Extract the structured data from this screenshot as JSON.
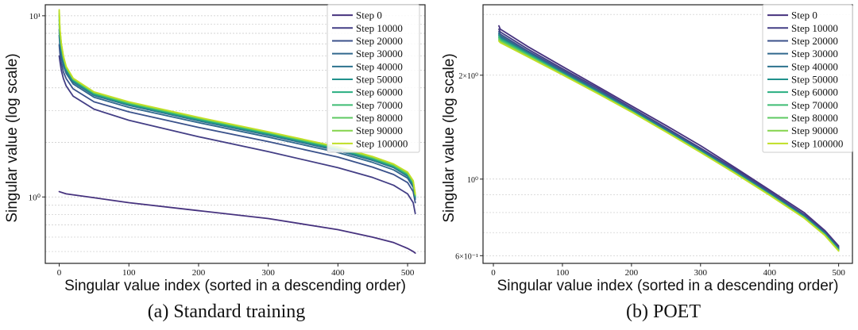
{
  "chart_data": [
    {
      "id": "a",
      "type": "line",
      "caption": "(a) Standard training",
      "xlabel": "Singular value index (sorted in a descending order)",
      "ylabel": "Singular value (log scale)",
      "yscale": "log",
      "xlim": [
        -20,
        525
      ],
      "ylim": [
        0.43,
        11.5
      ],
      "xticks": [
        0,
        100,
        200,
        300,
        400,
        500
      ],
      "xtick_labels": [
        "0",
        "100",
        "200",
        "300",
        "400",
        "500"
      ],
      "yticks": [
        1,
        10
      ],
      "ytick_labels": [
        "10⁰",
        "10¹"
      ],
      "grid": "horizontal minor",
      "legend_position": "top-right",
      "series": [
        {
          "name": "Step 0",
          "color": "#46327e",
          "x": [
            0,
            10,
            50,
            100,
            200,
            300,
            400,
            450,
            480,
            500,
            508,
            511
          ],
          "y": [
            1.07,
            1.04,
            0.99,
            0.93,
            0.84,
            0.76,
            0.66,
            0.6,
            0.56,
            0.52,
            0.5,
            0.49
          ]
        },
        {
          "name": "Step 10000",
          "color": "#433e85",
          "x": [
            0,
            1,
            3,
            6,
            10,
            20,
            50,
            100,
            200,
            300,
            400,
            450,
            480,
            500,
            508,
            511
          ],
          "y": [
            6.0,
            5.6,
            5.0,
            4.5,
            4.1,
            3.6,
            3.05,
            2.65,
            2.15,
            1.78,
            1.45,
            1.28,
            1.16,
            1.04,
            0.93,
            0.81
          ]
        },
        {
          "name": "Step 20000",
          "color": "#3b528b",
          "x": [
            0,
            1,
            3,
            6,
            10,
            20,
            50,
            100,
            200,
            300,
            400,
            450,
            480,
            500,
            508,
            511
          ],
          "y": [
            6.9,
            6.2,
            5.5,
            4.9,
            4.5,
            3.95,
            3.35,
            2.95,
            2.42,
            2.02,
            1.66,
            1.46,
            1.33,
            1.2,
            1.07,
            0.93
          ]
        },
        {
          "name": "Step 30000",
          "color": "#31688e",
          "x": [
            0,
            1,
            3,
            6,
            10,
            20,
            50,
            100,
            200,
            300,
            400,
            450,
            480,
            500,
            508,
            511
          ],
          "y": [
            7.8,
            6.8,
            6.0,
            5.3,
            4.8,
            4.2,
            3.55,
            3.12,
            2.57,
            2.14,
            1.76,
            1.55,
            1.41,
            1.27,
            1.13,
            0.97
          ]
        },
        {
          "name": "Step 40000",
          "color": "#2c728e",
          "x": [
            0,
            1,
            3,
            6,
            10,
            20,
            50,
            100,
            200,
            300,
            400,
            450,
            480,
            500,
            508,
            511
          ],
          "y": [
            8.4,
            7.2,
            6.3,
            5.5,
            4.95,
            4.3,
            3.63,
            3.2,
            2.63,
            2.19,
            1.8,
            1.59,
            1.45,
            1.3,
            1.16,
            0.99
          ]
        },
        {
          "name": "Step 50000",
          "color": "#21918c",
          "x": [
            0,
            1,
            3,
            6,
            10,
            20,
            50,
            100,
            200,
            300,
            400,
            450,
            480,
            500,
            508,
            511
          ],
          "y": [
            9.0,
            7.6,
            6.5,
            5.7,
            5.05,
            4.38,
            3.68,
            3.24,
            2.66,
            2.22,
            1.83,
            1.61,
            1.47,
            1.32,
            1.18,
            1.0
          ]
        },
        {
          "name": "Step 60000",
          "color": "#28ae80",
          "x": [
            0,
            1,
            3,
            6,
            10,
            20,
            50,
            100,
            200,
            300,
            400,
            450,
            480,
            500,
            508,
            511
          ],
          "y": [
            9.5,
            7.9,
            6.7,
            5.8,
            5.1,
            4.42,
            3.71,
            3.27,
            2.69,
            2.24,
            1.85,
            1.63,
            1.48,
            1.33,
            1.19,
            1.01
          ]
        },
        {
          "name": "Step 70000",
          "color": "#3fbc73",
          "x": [
            0,
            1,
            3,
            6,
            10,
            20,
            50,
            100,
            200,
            300,
            400,
            450,
            480,
            500,
            508,
            511
          ],
          "y": [
            9.9,
            8.1,
            6.8,
            5.85,
            5.15,
            4.45,
            3.74,
            3.29,
            2.71,
            2.26,
            1.86,
            1.64,
            1.49,
            1.34,
            1.2,
            1.02
          ]
        },
        {
          "name": "Step 80000",
          "color": "#5ec962",
          "x": [
            0,
            1,
            3,
            6,
            10,
            20,
            50,
            100,
            200,
            300,
            400,
            450,
            480,
            500,
            508,
            511
          ],
          "y": [
            10.3,
            8.3,
            6.9,
            5.9,
            5.2,
            4.48,
            3.76,
            3.31,
            2.72,
            2.27,
            1.87,
            1.65,
            1.5,
            1.35,
            1.21,
            1.02
          ]
        },
        {
          "name": "Step 90000",
          "color": "#84d44b",
          "x": [
            0,
            1,
            3,
            6,
            10,
            20,
            50,
            100,
            200,
            300,
            400,
            450,
            480,
            500,
            508,
            511
          ],
          "y": [
            10.6,
            8.4,
            7.0,
            5.95,
            5.22,
            4.5,
            3.78,
            3.33,
            2.74,
            2.28,
            1.88,
            1.66,
            1.51,
            1.36,
            1.22,
            1.03
          ]
        },
        {
          "name": "Step 100000",
          "color": "#c0df25",
          "x": [
            0,
            1,
            3,
            6,
            10,
            20,
            50,
            100,
            200,
            300,
            400,
            450,
            480,
            500,
            508,
            511
          ],
          "y": [
            10.8,
            8.5,
            7.05,
            6.0,
            5.25,
            4.52,
            3.8,
            3.35,
            2.75,
            2.29,
            1.89,
            1.67,
            1.52,
            1.37,
            1.23,
            1.04
          ]
        }
      ]
    },
    {
      "id": "b",
      "type": "line",
      "caption": "(b) POET",
      "xlabel": "Singular value index (sorted in a descending order)",
      "ylabel": "Singular value (log scale)",
      "yscale": "log",
      "xlim": [
        -15,
        520
      ],
      "ylim": [
        0.57,
        3.2
      ],
      "xticks": [
        0,
        100,
        200,
        300,
        400,
        500
      ],
      "xtick_labels": [
        "0",
        "100",
        "200",
        "300",
        "400",
        "500"
      ],
      "yticks": [
        0.6,
        1,
        2
      ],
      "ytick_labels": [
        "6×10⁻¹",
        "10⁰",
        "2×10⁰"
      ],
      "grid": "horizontal minor",
      "legend_position": "top-right",
      "series": [
        {
          "name": "Step 0",
          "color": "#46327e",
          "x": [
            8,
            10,
            50,
            100,
            150,
            200,
            250,
            300,
            350,
            400,
            450,
            480,
            500
          ],
          "y": [
            2.78,
            2.72,
            2.42,
            2.12,
            1.86,
            1.63,
            1.43,
            1.25,
            1.08,
            0.93,
            0.8,
            0.71,
            0.64
          ]
        },
        {
          "name": "Step 10000",
          "color": "#433e85",
          "x": [
            8,
            10,
            50,
            100,
            150,
            200,
            250,
            300,
            350,
            400,
            450,
            480,
            500
          ],
          "y": [
            2.72,
            2.67,
            2.38,
            2.09,
            1.84,
            1.61,
            1.41,
            1.23,
            1.07,
            0.92,
            0.79,
            0.705,
            0.635
          ]
        },
        {
          "name": "Step 20000",
          "color": "#3b528b",
          "x": [
            8,
            10,
            50,
            100,
            150,
            200,
            250,
            300,
            350,
            400,
            450,
            480,
            500
          ],
          "y": [
            2.68,
            2.63,
            2.35,
            2.07,
            1.82,
            1.6,
            1.4,
            1.22,
            1.06,
            0.915,
            0.785,
            0.7,
            0.632
          ]
        },
        {
          "name": "Step 30000",
          "color": "#31688e",
          "x": [
            8,
            10,
            50,
            100,
            150,
            200,
            250,
            300,
            350,
            400,
            450,
            480,
            500
          ],
          "y": [
            2.65,
            2.6,
            2.33,
            2.05,
            1.81,
            1.59,
            1.39,
            1.215,
            1.055,
            0.91,
            0.782,
            0.698,
            0.63
          ]
        },
        {
          "name": "Step 40000",
          "color": "#2c728e",
          "x": [
            8,
            10,
            50,
            100,
            150,
            200,
            250,
            300,
            350,
            400,
            450,
            480,
            500
          ],
          "y": [
            2.63,
            2.58,
            2.32,
            2.04,
            1.8,
            1.585,
            1.385,
            1.21,
            1.05,
            0.907,
            0.78,
            0.696,
            0.628
          ]
        },
        {
          "name": "Step 50000",
          "color": "#21918c",
          "x": [
            8,
            10,
            50,
            100,
            150,
            200,
            250,
            300,
            350,
            400,
            450,
            480,
            500
          ],
          "y": [
            2.61,
            2.56,
            2.31,
            2.03,
            1.795,
            1.58,
            1.38,
            1.205,
            1.047,
            0.905,
            0.778,
            0.694,
            0.626
          ]
        },
        {
          "name": "Step 60000",
          "color": "#28ae80",
          "x": [
            8,
            10,
            50,
            100,
            150,
            200,
            250,
            300,
            350,
            400,
            450,
            480,
            500
          ],
          "y": [
            2.59,
            2.545,
            2.3,
            2.025,
            1.79,
            1.575,
            1.377,
            1.202,
            1.045,
            0.903,
            0.776,
            0.692,
            0.624
          ]
        },
        {
          "name": "Step 70000",
          "color": "#3fbc73",
          "x": [
            8,
            10,
            50,
            100,
            150,
            200,
            250,
            300,
            350,
            400,
            450,
            480,
            500
          ],
          "y": [
            2.57,
            2.53,
            2.29,
            2.02,
            1.785,
            1.572,
            1.375,
            1.2,
            1.043,
            0.901,
            0.774,
            0.69,
            0.622
          ]
        },
        {
          "name": "Step 80000",
          "color": "#5ec962",
          "x": [
            8,
            10,
            50,
            100,
            150,
            200,
            250,
            300,
            350,
            400,
            450,
            480,
            500
          ],
          "y": [
            2.55,
            2.515,
            2.28,
            2.015,
            1.78,
            1.57,
            1.373,
            1.198,
            1.041,
            0.9,
            0.773,
            0.689,
            0.621
          ]
        },
        {
          "name": "Step 90000",
          "color": "#84d44b",
          "x": [
            8,
            10,
            50,
            100,
            150,
            200,
            250,
            300,
            350,
            400,
            450,
            480,
            500
          ],
          "y": [
            2.53,
            2.5,
            2.27,
            2.01,
            1.777,
            1.567,
            1.371,
            1.196,
            1.04,
            0.899,
            0.772,
            0.688,
            0.62
          ]
        },
        {
          "name": "Step 100000",
          "color": "#c0df25",
          "x": [
            8,
            10,
            50,
            100,
            150,
            200,
            250,
            300,
            350,
            400,
            450,
            480,
            500
          ],
          "y": [
            2.51,
            2.485,
            2.26,
            2.005,
            1.774,
            1.565,
            1.37,
            1.195,
            1.039,
            0.898,
            0.771,
            0.687,
            0.619
          ]
        }
      ]
    }
  ]
}
